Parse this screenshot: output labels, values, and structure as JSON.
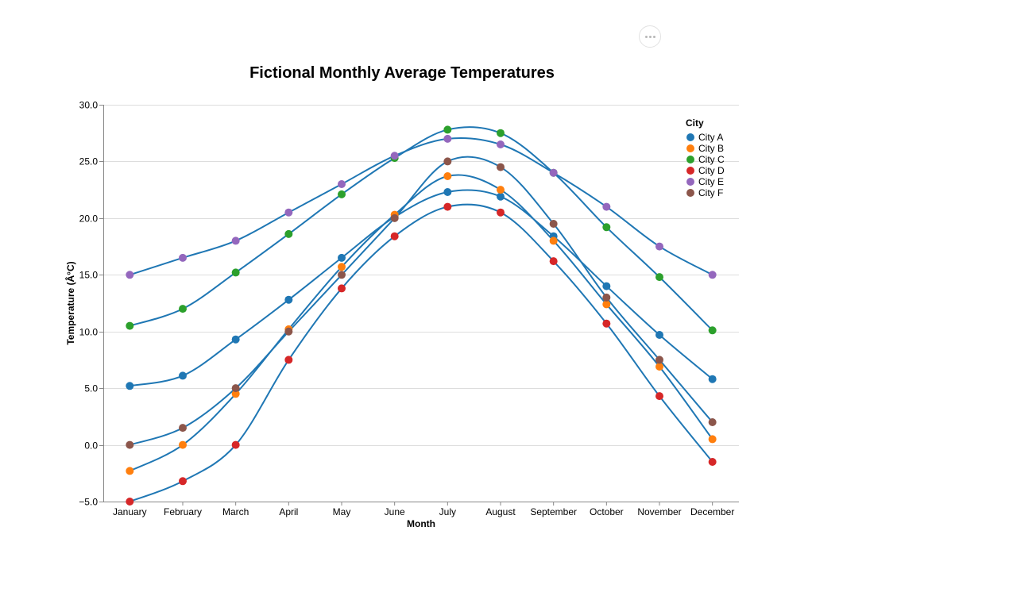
{
  "menu": {
    "icon": "more-horizontal-icon"
  },
  "chart_data": {
    "type": "line",
    "title": "Fictional Monthly Average Temperatures",
    "xlabel": "Month",
    "ylabel": "Temperature (Â°C)",
    "ylim": [
      -5,
      30
    ],
    "yticks": [
      "−5.0",
      "0.0",
      "5.0",
      "10.0",
      "15.0",
      "20.0",
      "25.0",
      "30.0"
    ],
    "grid": "horizontal",
    "legend_position": "top-right",
    "legend_title": "City",
    "line_color": "#1f77b4",
    "categories": [
      "January",
      "February",
      "March",
      "April",
      "May",
      "June",
      "July",
      "August",
      "September",
      "October",
      "November",
      "December"
    ],
    "series": [
      {
        "name": "City A",
        "color": "#1f77b4",
        "values": [
          5.2,
          6.1,
          9.3,
          12.8,
          16.5,
          20.1,
          22.3,
          21.9,
          18.4,
          14.0,
          9.7,
          5.8
        ]
      },
      {
        "name": "City B",
        "color": "#ff7f0e",
        "values": [
          -2.3,
          0.0,
          4.5,
          10.2,
          15.7,
          20.3,
          23.7,
          22.5,
          18.0,
          12.4,
          6.9,
          0.5
        ]
      },
      {
        "name": "City C",
        "color": "#2ca02c",
        "values": [
          10.5,
          12.0,
          15.2,
          18.6,
          22.1,
          25.3,
          27.8,
          27.5,
          24.0,
          19.2,
          14.8,
          10.1
        ]
      },
      {
        "name": "City D",
        "color": "#d62728",
        "values": [
          -5.0,
          -3.2,
          0.0,
          7.5,
          13.8,
          18.4,
          21.0,
          20.5,
          16.2,
          10.7,
          4.3,
          -1.5
        ]
      },
      {
        "name": "City E",
        "color": "#9467bd",
        "values": [
          15.0,
          16.5,
          18.0,
          20.5,
          23.0,
          25.5,
          27.0,
          26.5,
          24.0,
          21.0,
          17.5,
          15.0
        ]
      },
      {
        "name": "City F",
        "color": "#8c564b",
        "values": [
          0.0,
          1.5,
          5.0,
          10.0,
          15.0,
          20.0,
          25.0,
          24.5,
          19.5,
          13.0,
          7.5,
          2.0
        ]
      }
    ]
  }
}
